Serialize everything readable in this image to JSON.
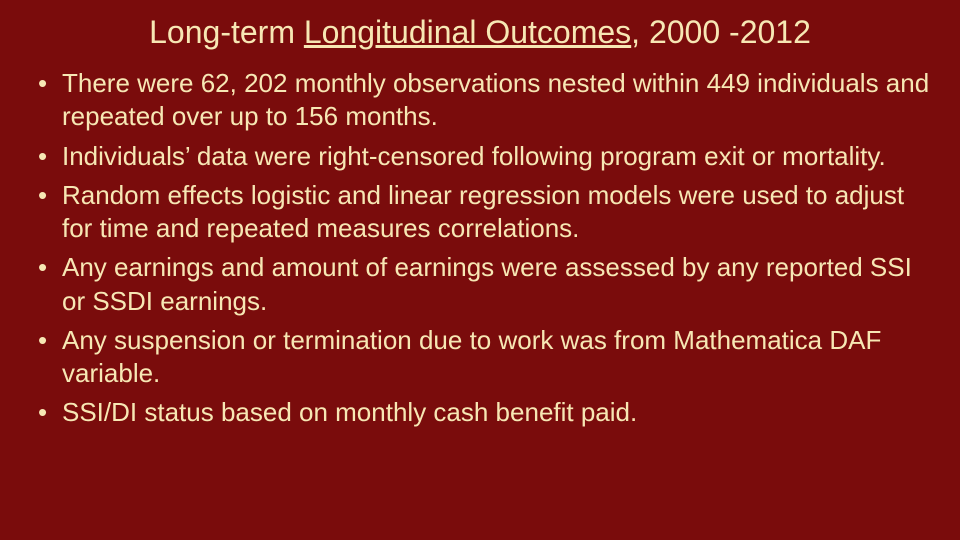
{
  "slide": {
    "title_prefix": "Long-term ",
    "title_underlined": "Longitudinal Outcomes",
    "title_suffix": ", 2000 -2012",
    "bullets": [
      "There were 62, 202 monthly observations nested within 449 individuals and repeated over up to 156 months.",
      "Individuals’ data were right-censored following program exit or mortality.",
      "Random effects logistic and linear regression models were used to adjust for time and repeated measures correlations.",
      "Any earnings and amount of earnings were assessed by any reported SSI or SSDI earnings.",
      "Any suspension or termination due to work was from Mathematica DAF variable.",
      "SSI/DI status based on monthly cash benefit paid."
    ],
    "colors": {
      "background": "#7a0c0c",
      "text": "#f7e7b4"
    },
    "title_fontsize": 32,
    "body_fontsize": 26
  }
}
